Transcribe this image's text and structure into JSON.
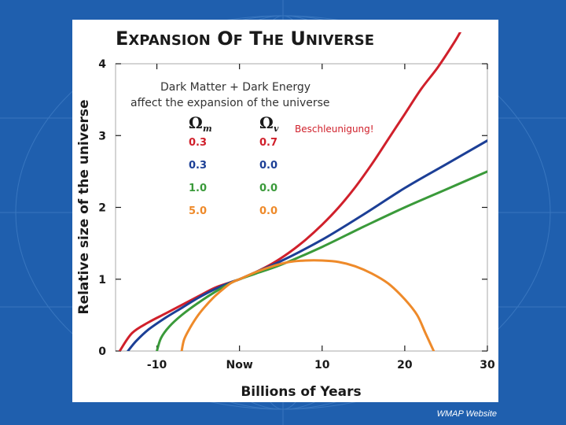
{
  "slide": {
    "credit": "WMAP Website",
    "background_color": "#1f5fae"
  },
  "chart_data": {
    "type": "line",
    "title": "EXPANSION OF THE UNIVERSE",
    "xlabel": "Billions of Years",
    "ylabel": "Relative size of the universe",
    "x_ticks": [
      "-10",
      "Now",
      "10",
      "20",
      "30"
    ],
    "y_ticks": [
      "0",
      "1",
      "2",
      "3",
      "4"
    ],
    "xlim": [
      -15,
      30
    ],
    "ylim": [
      0,
      4
    ],
    "grid": false,
    "legend_note": [
      "Dark Matter + Dark Energy",
      "affect the expansion of the universe"
    ],
    "legend_headers": {
      "omega_m": "Ω",
      "omega_m_sub": "m",
      "omega_v": "Ω",
      "omega_v_sub": "v"
    },
    "annotation": "Beschleunigung!",
    "series": [
      {
        "omega_m": "0.3",
        "omega_v": "0.7",
        "color": "#d0202b",
        "x": [
          -14.5,
          -13,
          -11,
          -9,
          -7,
          -5,
          -3,
          -1,
          0,
          2,
          4,
          6,
          8,
          10,
          12,
          14,
          16,
          18,
          20,
          22,
          24,
          26,
          27
        ],
        "y": [
          0,
          0.25,
          0.4,
          0.52,
          0.64,
          0.76,
          0.88,
          0.96,
          1.0,
          1.1,
          1.22,
          1.37,
          1.55,
          1.76,
          2.0,
          2.28,
          2.6,
          2.95,
          3.3,
          3.65,
          3.95,
          4.3,
          4.5
        ]
      },
      {
        "omega_m": "0.3",
        "omega_v": "0.0",
        "color": "#1c3f96",
        "x": [
          -13.5,
          -12.5,
          -11,
          -9,
          -7,
          -5,
          -3,
          -1,
          0,
          2,
          5,
          10,
          15,
          20,
          25,
          30
        ],
        "y": [
          0,
          0.14,
          0.3,
          0.46,
          0.6,
          0.74,
          0.86,
          0.96,
          1.0,
          1.1,
          1.25,
          1.55,
          1.9,
          2.27,
          2.6,
          2.93
        ]
      },
      {
        "omega_m": "1.0",
        "omega_v": "0.0",
        "color": "#3a9a3a",
        "x": [
          -10,
          -9.5,
          -8.5,
          -7,
          -5,
          -3,
          -1,
          0,
          2,
          5,
          10,
          15,
          20,
          25,
          30
        ],
        "y": [
          0,
          0.18,
          0.34,
          0.5,
          0.67,
          0.82,
          0.95,
          1.0,
          1.08,
          1.2,
          1.45,
          1.73,
          2.0,
          2.25,
          2.5
        ]
      },
      {
        "omega_m": "5.0",
        "omega_v": "0.0",
        "color": "#ee8a2a",
        "x": [
          -7,
          -6.7,
          -6,
          -5,
          -4,
          -3,
          -2,
          -1,
          0,
          2,
          4,
          6,
          8,
          10,
          12,
          14,
          16,
          18,
          20,
          21.5,
          22.5,
          23.5
        ],
        "y": [
          0,
          0.16,
          0.32,
          0.5,
          0.64,
          0.76,
          0.86,
          0.95,
          1.0,
          1.1,
          1.18,
          1.24,
          1.26,
          1.26,
          1.24,
          1.18,
          1.08,
          0.94,
          0.72,
          0.5,
          0.25,
          0
        ]
      }
    ]
  }
}
